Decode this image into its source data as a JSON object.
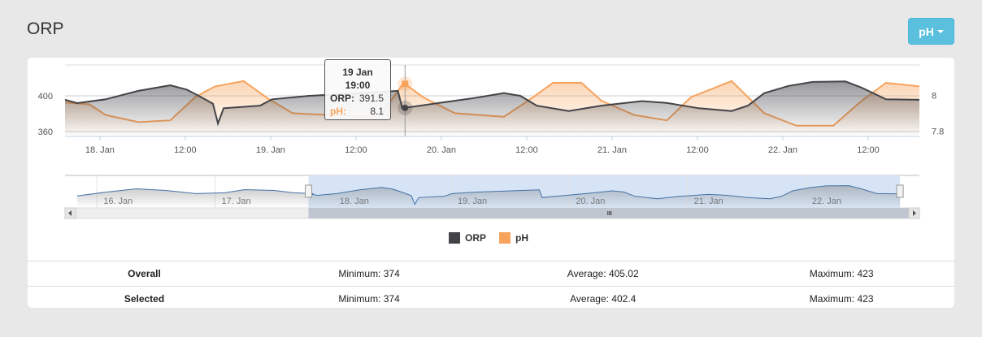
{
  "page": {
    "title": "ORP",
    "series_button": "pH"
  },
  "tooltip": {
    "date": "19 Jan",
    "time": "19:00",
    "orp_label": "ORP:",
    "orp_value": "391.5",
    "ph_label": "pH:",
    "ph_value": "8.1"
  },
  "legend": [
    {
      "label": "ORP",
      "color": "#434348"
    },
    {
      "label": "pH",
      "color": "#f7a35c"
    }
  ],
  "stats": [
    {
      "label": "Overall",
      "min": "Minimum: 374",
      "avg": "Average: 405.02",
      "max": "Maximum: 423"
    },
    {
      "label": "Selected",
      "min": "Minimum: 374",
      "avg": "Average: 402.4",
      "max": "Maximum: 423"
    }
  ],
  "chart_data": {
    "type": "area",
    "x_unit": "hours since 18 Jan 00:00",
    "xlim": [
      -4.9,
      115.2
    ],
    "x_ticks": [
      {
        "h": 0,
        "label": "18. Jan"
      },
      {
        "h": 12,
        "label": "12:00"
      },
      {
        "h": 24,
        "label": "19. Jan"
      },
      {
        "h": 36,
        "label": "12:00"
      },
      {
        "h": 48,
        "label": "20. Jan"
      },
      {
        "h": 60,
        "label": "12:00"
      },
      {
        "h": 72,
        "label": "21. Jan"
      },
      {
        "h": 84,
        "label": "12:00"
      },
      {
        "h": 96,
        "label": "22. Jan"
      },
      {
        "h": 108,
        "label": "12:00"
      }
    ],
    "y_left": {
      "ylim": [
        354.5,
        434.5
      ],
      "ticks": [
        "400",
        "360"
      ],
      "tick_values": [
        400,
        360
      ]
    },
    "y_right": {
      "ylim": [
        7.77,
        8.17
      ],
      "ticks": [
        "8",
        "7.8"
      ],
      "tick_values": [
        8,
        7.8
      ]
    },
    "series": [
      {
        "name": "ORP",
        "color": "#434348",
        "x": [
          -4.9,
          -3.2,
          0.8,
          5.4,
          9.9,
          12.2,
          13.9,
          15.9,
          16.6,
          17.4,
          22.5,
          24.2,
          29.4,
          36.2,
          41.9,
          42.5,
          47.7,
          52.2,
          56.8,
          59.1,
          61.4,
          65.9,
          70.5,
          76.2,
          79.7,
          84.2,
          88.8,
          91.1,
          93.4,
          96.8,
          100.2,
          104.8,
          107.1,
          110.5,
          115.2
        ],
        "y": [
          395.5,
          391.8,
          396,
          405.5,
          411.8,
          407,
          400,
          391,
          369,
          386,
          389,
          396,
          400,
          403,
          405.5,
          386,
          392,
          397,
          403,
          400,
          389,
          383,
          389,
          394,
          392,
          386,
          383,
          389,
          403,
          411,
          415.5,
          416,
          409,
          396,
          395.5
        ]
      },
      {
        "name": "pH",
        "color": "#f7a35c",
        "x": [
          -4.9,
          -1.5,
          0.8,
          5.4,
          9.9,
          13.4,
          16.2,
          20.2,
          23.7,
          27.1,
          37.4,
          39.7,
          42.7,
          45.4,
          49.9,
          56.8,
          60.2,
          63.7,
          67.7,
          70.5,
          75.1,
          79.7,
          83.1,
          88.8,
          93.4,
          97.9,
          103.1,
          107.1,
          110.5,
          115.2
        ],
        "y": [
          7.96,
          7.95,
          7.89,
          7.85,
          7.86,
          7.99,
          8.05,
          8.08,
          7.98,
          7.9,
          7.88,
          7.9,
          8.07,
          7.99,
          7.9,
          7.88,
          7.97,
          8.07,
          8.07,
          7.97,
          7.89,
          7.86,
          7.99,
          8.08,
          7.9,
          7.83,
          7.83,
          7.97,
          8.07,
          8.05
        ]
      }
    ],
    "crosshair_h": 42.9,
    "navigator": {
      "x_ticks": [
        {
          "h": -48,
          "label": "16. Jan"
        },
        {
          "h": -24,
          "label": "17. Jan"
        },
        {
          "h": 0,
          "label": "18. Jan"
        },
        {
          "h": 24,
          "label": "19. Jan"
        },
        {
          "h": 48,
          "label": "20. Jan"
        },
        {
          "h": 72,
          "label": "21. Jan"
        },
        {
          "h": 96,
          "label": "22. Jan"
        }
      ],
      "xlim": [
        -52,
        117
      ],
      "selection": [
        -5,
        115.2
      ],
      "x": [
        -52,
        -46,
        -40,
        -34,
        -28,
        -22,
        -18,
        -12,
        -8,
        -4
      ],
      "y": [
        390,
        400,
        408,
        404,
        396,
        398,
        406,
        404,
        398,
        396
      ]
    }
  }
}
